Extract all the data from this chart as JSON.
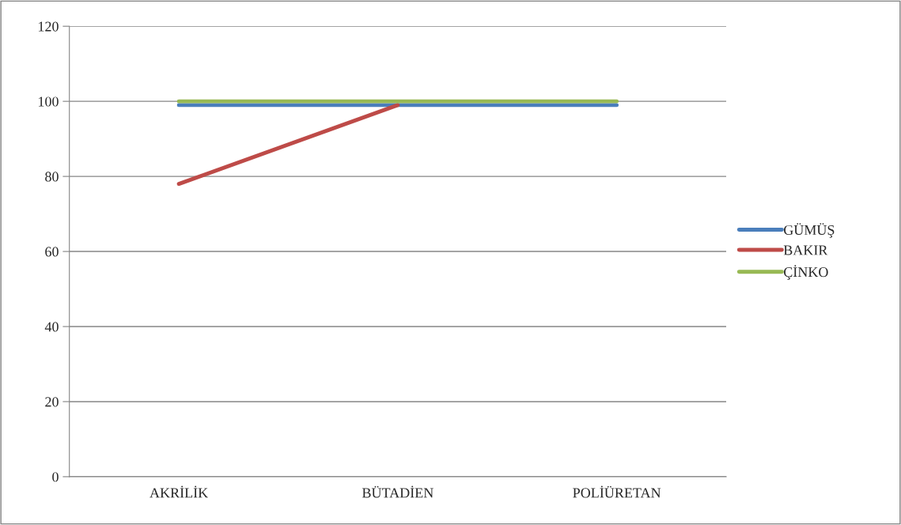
{
  "chart_data": {
    "type": "line",
    "categories": [
      "AKRİLİK",
      "BÜTADİEN",
      "POLİÜRETAN"
    ],
    "series": [
      {
        "name": "GÜMÜŞ",
        "color": "#4a7ebb",
        "values": [
          99,
          99,
          99
        ]
      },
      {
        "name": "BAKIR",
        "color": "#be4b48",
        "values": [
          78,
          99,
          null
        ]
      },
      {
        "name": "ÇİNKO",
        "color": "#98b954",
        "values": [
          100,
          100,
          100
        ]
      }
    ],
    "ylim": [
      0,
      120
    ],
    "yticks": [
      0,
      20,
      40,
      60,
      80,
      100,
      120
    ],
    "grid": "y",
    "legend": "right",
    "marker": "none",
    "line_style": "solid"
  }
}
